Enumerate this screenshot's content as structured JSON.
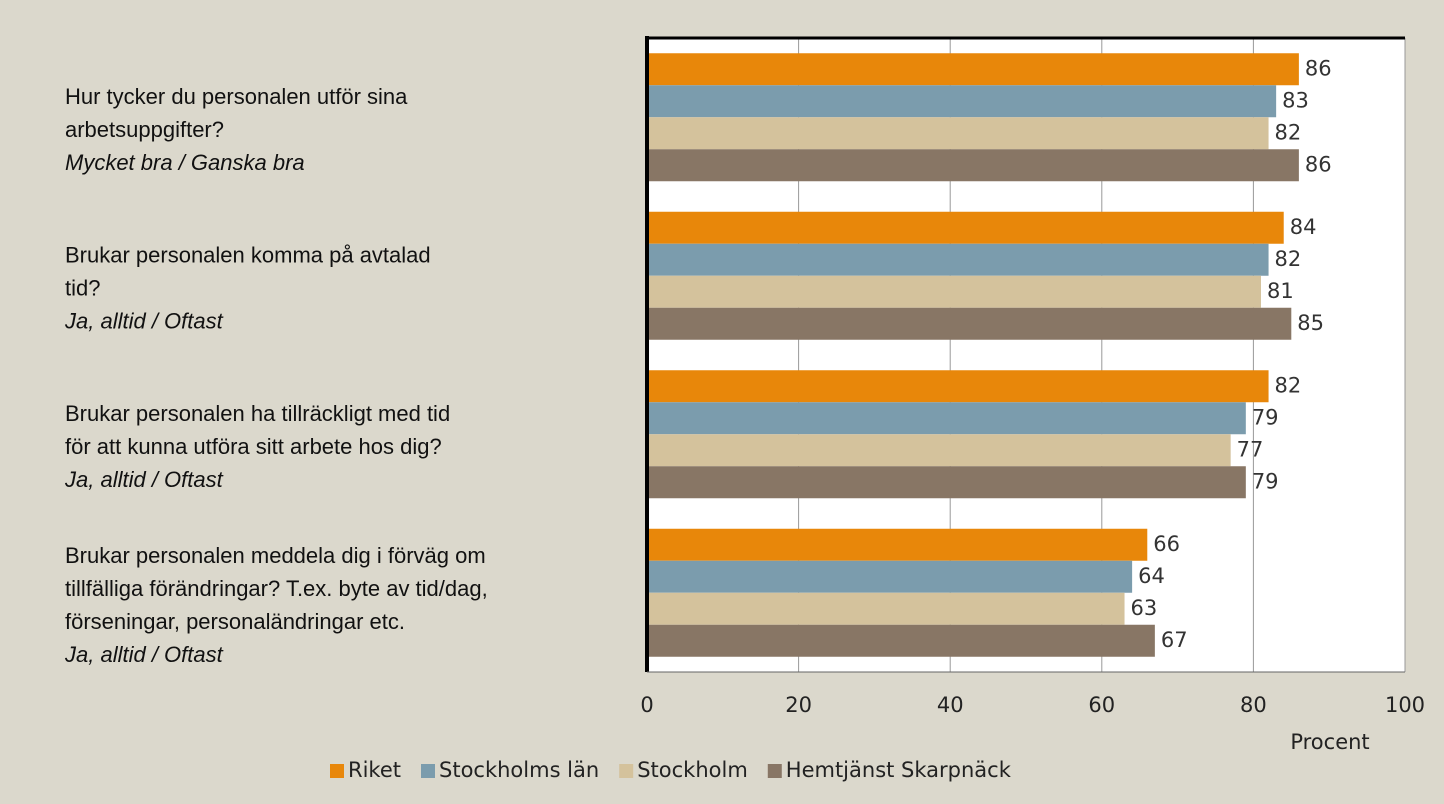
{
  "chart_data": {
    "type": "barh",
    "categories": [
      {
        "question": [
          "Hur tycker du personalen utför sina",
          "arbetsuppgifter?"
        ],
        "answer": "Mycket bra / Ganska bra"
      },
      {
        "question": [
          "Brukar personalen komma på avtalad",
          "tid?"
        ],
        "answer": "Ja, alltid / Oftast"
      },
      {
        "question": [
          "Brukar personalen ha tillräckligt med tid",
          "för att kunna utföra sitt arbete hos dig?"
        ],
        "answer": "Ja, alltid / Oftast"
      },
      {
        "question": [
          "Brukar personalen meddela dig i förväg om",
          "tillfälliga förändringar? T.ex. byte av tid/dag,",
          "förseningar, personaländringar etc."
        ],
        "answer": "Ja, alltid / Oftast"
      }
    ],
    "series": [
      {
        "name": "Riket",
        "color": "#e8870a",
        "values": [
          86,
          84,
          82,
          66
        ]
      },
      {
        "name": "Stockholms län",
        "color": "#7b9cad",
        "values": [
          83,
          82,
          79,
          64
        ]
      },
      {
        "name": "Stockholm",
        "color": "#d4c29c",
        "values": [
          82,
          81,
          77,
          63
        ]
      },
      {
        "name": "Hemtjänst Skarpnäck",
        "color": "#887665",
        "values": [
          86,
          85,
          79,
          67
        ]
      }
    ],
    "xlabel": "Procent",
    "xlim": [
      0,
      100
    ],
    "xticks": [
      0,
      20,
      40,
      60,
      80,
      100
    ],
    "grid": true,
    "legend": "bottom"
  }
}
